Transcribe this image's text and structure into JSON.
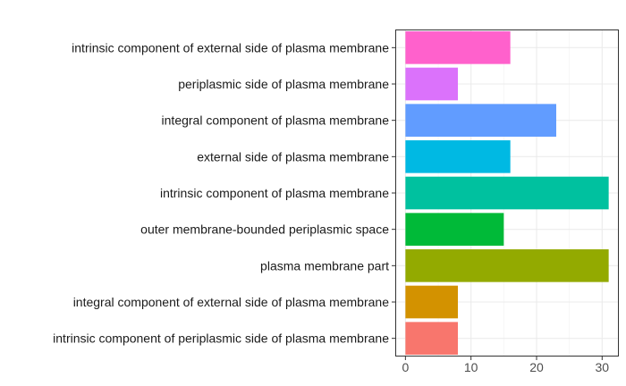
{
  "chart_data": {
    "type": "bar",
    "orientation": "horizontal",
    "categories": [
      "intrinsic component of external side of plasma membrane",
      "periplasmic side of plasma membrane",
      "integral component of plasma membrane",
      "external side of plasma membrane",
      "intrinsic component of plasma membrane",
      "outer membrane-bounded periplasmic space",
      "plasma membrane part",
      "integral component of external side of plasma membrane",
      "intrinsic component of periplasmic side of plasma membrane"
    ],
    "values": [
      16,
      8,
      23,
      16,
      31,
      15,
      31,
      8,
      8
    ],
    "colors": [
      "#FF61CC",
      "#DB72FB",
      "#619CFF",
      "#00B9E3",
      "#00C19F",
      "#00BA38",
      "#93AA00",
      "#D39200",
      "#F8766D"
    ],
    "xlim": [
      -1.55,
      32.55
    ],
    "xticks": [
      0,
      10,
      20,
      30
    ],
    "xtick_labels": [
      "0",
      "10",
      "20",
      "30"
    ],
    "title": "",
    "xlabel": "",
    "ylabel": "",
    "grid": true,
    "legend": "none"
  }
}
